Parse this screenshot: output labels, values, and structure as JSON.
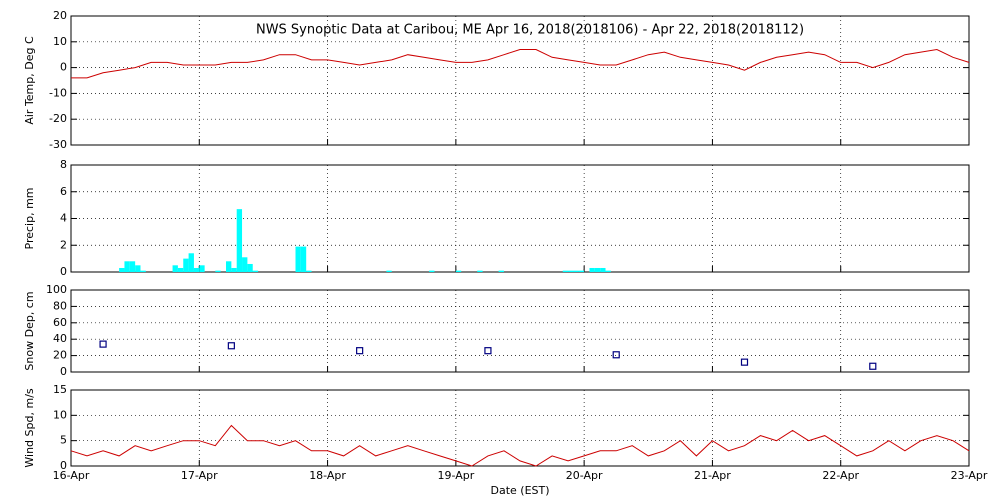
{
  "chart_data": [
    {
      "type": "line",
      "title": "NWS Synoptic Data at Caribou, ME   Apr 16, 2018(2018106) - Apr 22, 2018(2018112)",
      "ylabel": "Air Temp, Deg C",
      "color": "#cc0000",
      "grid": true,
      "x": [
        "2018-04-16T00:00",
        "2018-04-16T03:00",
        "2018-04-16T06:00",
        "2018-04-16T09:00",
        "2018-04-16T12:00",
        "2018-04-16T15:00",
        "2018-04-16T18:00",
        "2018-04-16T21:00",
        "2018-04-17T00:00",
        "2018-04-17T03:00",
        "2018-04-17T06:00",
        "2018-04-17T09:00",
        "2018-04-17T12:00",
        "2018-04-17T15:00",
        "2018-04-17T18:00",
        "2018-04-17T21:00",
        "2018-04-18T00:00",
        "2018-04-18T03:00",
        "2018-04-18T06:00",
        "2018-04-18T09:00",
        "2018-04-18T12:00",
        "2018-04-18T15:00",
        "2018-04-18T18:00",
        "2018-04-18T21:00",
        "2018-04-19T00:00",
        "2018-04-19T03:00",
        "2018-04-19T06:00",
        "2018-04-19T09:00",
        "2018-04-19T12:00",
        "2018-04-19T15:00",
        "2018-04-19T18:00",
        "2018-04-19T21:00",
        "2018-04-20T00:00",
        "2018-04-20T03:00",
        "2018-04-20T06:00",
        "2018-04-20T09:00",
        "2018-04-20T12:00",
        "2018-04-20T15:00",
        "2018-04-20T18:00",
        "2018-04-20T21:00",
        "2018-04-21T00:00",
        "2018-04-21T03:00",
        "2018-04-21T06:00",
        "2018-04-21T09:00",
        "2018-04-21T12:00",
        "2018-04-21T15:00",
        "2018-04-21T18:00",
        "2018-04-21T21:00",
        "2018-04-22T00:00",
        "2018-04-22T03:00",
        "2018-04-22T06:00",
        "2018-04-22T09:00",
        "2018-04-22T12:00",
        "2018-04-22T15:00",
        "2018-04-22T18:00",
        "2018-04-22T21:00",
        "2018-04-23T00:00"
      ],
      "values": [
        -4,
        -4,
        -2,
        -1,
        0,
        2,
        2,
        1,
        1,
        1,
        2,
        2,
        3,
        5,
        5,
        3,
        3,
        2,
        1,
        2,
        3,
        5,
        4,
        3,
        2,
        2,
        3,
        5,
        7,
        7,
        4,
        3,
        2,
        1,
        1,
        3,
        5,
        6,
        4,
        3,
        2,
        1,
        -1,
        2,
        4,
        5,
        6,
        5,
        2,
        2,
        0,
        2,
        5,
        6,
        7,
        4,
        2
      ],
      "xlim": [
        "2018-04-16T00:00",
        "2018-04-23T00:00"
      ],
      "xticks": [
        "2018-04-17T00:00",
        "2018-04-18T00:00",
        "2018-04-19T00:00",
        "2018-04-20T00:00",
        "2018-04-21T00:00",
        "2018-04-22T00:00"
      ],
      "ylim": [
        -30,
        20
      ],
      "yticks": [
        -30,
        -20,
        -10,
        0,
        10,
        20
      ]
    },
    {
      "type": "bar",
      "ylabel": "Precip, mm",
      "color": "#00ffff",
      "grid": true,
      "x": [
        "2018-04-16T09:00",
        "2018-04-16T10:00",
        "2018-04-16T11:00",
        "2018-04-16T12:00",
        "2018-04-16T13:00",
        "2018-04-16T19:00",
        "2018-04-16T20:00",
        "2018-04-16T21:00",
        "2018-04-16T22:00",
        "2018-04-16T23:00",
        "2018-04-17T00:00",
        "2018-04-17T03:00",
        "2018-04-17T05:00",
        "2018-04-17T06:00",
        "2018-04-17T07:00",
        "2018-04-17T08:00",
        "2018-04-17T09:00",
        "2018-04-17T10:00",
        "2018-04-17T18:00",
        "2018-04-17T19:00",
        "2018-04-17T20:00",
        "2018-04-18T11:00",
        "2018-04-18T19:00",
        "2018-04-19T00:00",
        "2018-04-19T04:00",
        "2018-04-19T08:00",
        "2018-04-19T20:00",
        "2018-04-19T21:00",
        "2018-04-19T22:00",
        "2018-04-19T23:00",
        "2018-04-20T01:00",
        "2018-04-20T02:00",
        "2018-04-20T03:00",
        "2018-04-20T04:00"
      ],
      "values": [
        0.3,
        0.8,
        0.8,
        0.5,
        0.1,
        0.5,
        0.3,
        1.0,
        1.4,
        0.3,
        0.5,
        0.1,
        0.8,
        0.3,
        4.7,
        1.1,
        0.6,
        0.1,
        1.9,
        1.9,
        0.1,
        0.1,
        0.1,
        0.1,
        0.1,
        0.1,
        0.1,
        0.1,
        0.1,
        0.1,
        0.3,
        0.3,
        0.3,
        0.1
      ],
      "xlim": [
        "2018-04-16T00:00",
        "2018-04-23T00:00"
      ],
      "xticks": [
        "2018-04-17T00:00",
        "2018-04-18T00:00",
        "2018-04-19T00:00",
        "2018-04-20T00:00",
        "2018-04-21T00:00",
        "2018-04-22T00:00"
      ],
      "ylim": [
        0,
        8
      ],
      "yticks": [
        0,
        2,
        4,
        6,
        8
      ]
    },
    {
      "type": "scatter",
      "ylabel": "Snow Dep, cm",
      "color": "#000080",
      "grid": true,
      "x": [
        "2018-04-16T06:00",
        "2018-04-17T06:00",
        "2018-04-18T06:00",
        "2018-04-19T06:00",
        "2018-04-20T06:00",
        "2018-04-21T06:00",
        "2018-04-22T06:00"
      ],
      "values": [
        34,
        32,
        26,
        26,
        21,
        12,
        7
      ],
      "xlim": [
        "2018-04-16T00:00",
        "2018-04-23T00:00"
      ],
      "xticks": [
        "2018-04-17T00:00",
        "2018-04-18T00:00",
        "2018-04-19T00:00",
        "2018-04-20T00:00",
        "2018-04-21T00:00",
        "2018-04-22T00:00"
      ],
      "ylim": [
        0,
        100
      ],
      "yticks": [
        0,
        20,
        40,
        60,
        80,
        100
      ]
    },
    {
      "type": "line",
      "ylabel": "Wind Spd, m/s",
      "xlabel": "Date (EST)",
      "color": "#cc0000",
      "grid": true,
      "x": [
        "2018-04-16T00:00",
        "2018-04-16T03:00",
        "2018-04-16T06:00",
        "2018-04-16T09:00",
        "2018-04-16T12:00",
        "2018-04-16T15:00",
        "2018-04-16T18:00",
        "2018-04-16T21:00",
        "2018-04-17T00:00",
        "2018-04-17T03:00",
        "2018-04-17T06:00",
        "2018-04-17T09:00",
        "2018-04-17T12:00",
        "2018-04-17T15:00",
        "2018-04-17T18:00",
        "2018-04-17T21:00",
        "2018-04-18T00:00",
        "2018-04-18T03:00",
        "2018-04-18T06:00",
        "2018-04-18T09:00",
        "2018-04-18T12:00",
        "2018-04-18T15:00",
        "2018-04-18T18:00",
        "2018-04-18T21:00",
        "2018-04-19T00:00",
        "2018-04-19T03:00",
        "2018-04-19T06:00",
        "2018-04-19T09:00",
        "2018-04-19T12:00",
        "2018-04-19T15:00",
        "2018-04-19T18:00",
        "2018-04-19T21:00",
        "2018-04-20T00:00",
        "2018-04-20T03:00",
        "2018-04-20T06:00",
        "2018-04-20T09:00",
        "2018-04-20T12:00",
        "2018-04-20T15:00",
        "2018-04-20T18:00",
        "2018-04-20T21:00",
        "2018-04-21T00:00",
        "2018-04-21T03:00",
        "2018-04-21T06:00",
        "2018-04-21T09:00",
        "2018-04-21T12:00",
        "2018-04-21T15:00",
        "2018-04-21T18:00",
        "2018-04-21T21:00",
        "2018-04-22T00:00",
        "2018-04-22T03:00",
        "2018-04-22T06:00",
        "2018-04-22T09:00",
        "2018-04-22T12:00",
        "2018-04-22T15:00",
        "2018-04-22T18:00",
        "2018-04-22T21:00",
        "2018-04-23T00:00"
      ],
      "values": [
        3,
        2,
        3,
        2,
        4,
        3,
        4,
        5,
        5,
        4,
        8,
        5,
        5,
        4,
        5,
        3,
        3,
        2,
        4,
        2,
        3,
        4,
        3,
        2,
        1,
        0,
        2,
        3,
        1,
        0,
        2,
        1,
        2,
        3,
        3,
        4,
        2,
        3,
        5,
        2,
        5,
        3,
        4,
        6,
        5,
        7,
        5,
        6,
        4,
        2,
        3,
        5,
        3,
        5,
        6,
        5,
        3
      ],
      "xlim": [
        "2018-04-16T00:00",
        "2018-04-23T00:00"
      ],
      "xticks": [
        {
          "value": "2018-04-16T00:00",
          "label": "16-Apr"
        },
        {
          "value": "2018-04-17T00:00",
          "label": "17-Apr"
        },
        {
          "value": "2018-04-18T00:00",
          "label": "18-Apr"
        },
        {
          "value": "2018-04-19T00:00",
          "label": "19-Apr"
        },
        {
          "value": "2018-04-20T00:00",
          "label": "20-Apr"
        },
        {
          "value": "2018-04-21T00:00",
          "label": "21-Apr"
        },
        {
          "value": "2018-04-22T00:00",
          "label": "22-Apr"
        },
        {
          "value": "2018-04-23T00:00",
          "label": "23-Apr"
        }
      ],
      "ylim": [
        0,
        15
      ],
      "yticks": [
        0,
        5,
        10,
        15
      ]
    }
  ]
}
